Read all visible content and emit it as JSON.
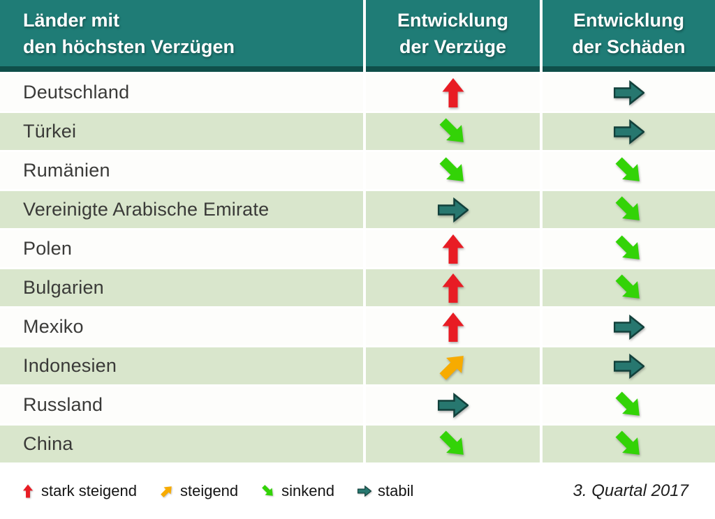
{
  "chart_data": {
    "type": "table",
    "title": "Länder mit den höchsten Verzügen",
    "header": {
      "col1": [
        "Länder mit",
        "den höchsten Verzügen"
      ],
      "col2": [
        "Entwicklung",
        "der Verzüge"
      ],
      "col3": [
        "Entwicklung",
        "der Schäden"
      ]
    },
    "rows": [
      {
        "country": "Deutschland",
        "verzuege": "stark_steigend",
        "schaeden": "stabil"
      },
      {
        "country": "Türkei",
        "verzuege": "sinkend",
        "schaeden": "stabil"
      },
      {
        "country": "Rumänien",
        "verzuege": "sinkend",
        "schaeden": "sinkend"
      },
      {
        "country": "Vereinigte Arabische Emirate",
        "verzuege": "stabil",
        "schaeden": "sinkend"
      },
      {
        "country": "Polen",
        "verzuege": "stark_steigend",
        "schaeden": "sinkend"
      },
      {
        "country": "Bulgarien",
        "verzuege": "stark_steigend",
        "schaeden": "sinkend"
      },
      {
        "country": "Mexiko",
        "verzuege": "stark_steigend",
        "schaeden": "stabil"
      },
      {
        "country": "Indonesien",
        "verzuege": "steigend",
        "schaeden": "stabil"
      },
      {
        "country": "Russland",
        "verzuege": "stabil",
        "schaeden": "sinkend"
      },
      {
        "country": "China",
        "verzuege": "sinkend",
        "schaeden": "sinkend"
      }
    ],
    "legend": [
      {
        "type": "stark_steigend",
        "label": "stark steigend"
      },
      {
        "type": "steigend",
        "label": "steigend"
      },
      {
        "type": "sinkend",
        "label": "sinkend"
      },
      {
        "type": "stabil",
        "label": "stabil"
      }
    ],
    "period": "3. Quartal 2017"
  },
  "colors": {
    "header_teal": "#1f7c76",
    "header_border": "#0f4f4a",
    "row_green": "#d9e6cc",
    "row_white": "#fdfdfb",
    "arrow_red": "#e81c24",
    "arrow_orange": "#f7ab00",
    "arrow_green": "#33d307",
    "arrow_teal": "#27776f",
    "arrow_teal_outline": "#12403b",
    "text_dark": "#3a3a38"
  }
}
